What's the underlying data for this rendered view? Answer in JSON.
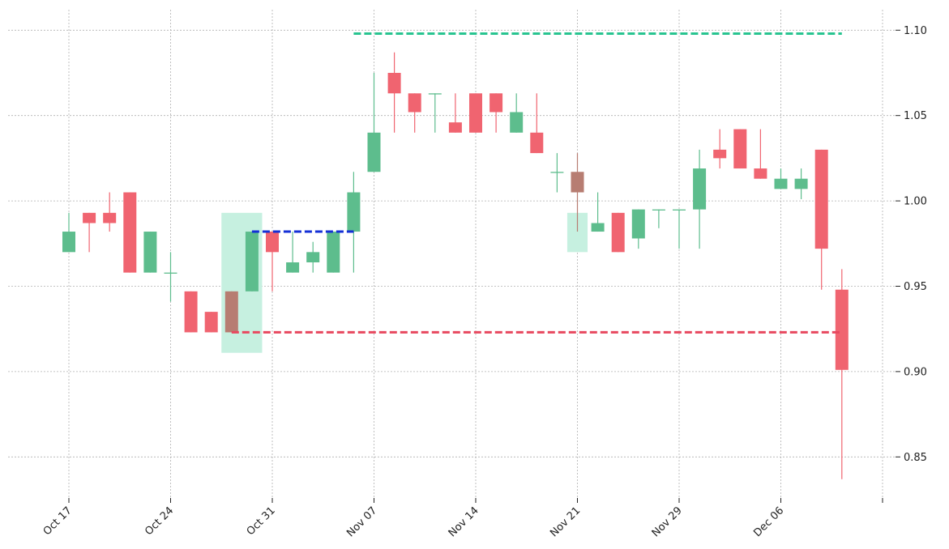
{
  "colors": {
    "up": "#5dbd8d",
    "down": "#f06470",
    "highlight": "#c6f0e0",
    "overlap": "#b77d72",
    "line_resistance": "#28c490",
    "line_support": "#e8485f",
    "line_neckline": "#1430d6"
  },
  "chart_data": {
    "type": "candlestick",
    "title": "",
    "xlabel": "",
    "ylabel": "",
    "ylim": [
      0.825,
      1.112
    ],
    "yticks": [
      0.85,
      0.9,
      0.95,
      1.0,
      1.05,
      1.1
    ],
    "ytick_labels": [
      "0.85",
      "0.90",
      "0.95",
      "1.00",
      "1.05",
      "1.10"
    ],
    "xticks": [
      {
        "index": 0,
        "label": "Oct 17"
      },
      {
        "index": 5,
        "label": "Oct 24"
      },
      {
        "index": 10,
        "label": "Oct 31"
      },
      {
        "index": 15,
        "label": "Nov 07"
      },
      {
        "index": 20,
        "label": "Nov 14"
      },
      {
        "index": 25,
        "label": "Nov 21"
      },
      {
        "index": 30,
        "label": "Nov 29"
      },
      {
        "index": 35,
        "label": "Dec 06"
      },
      {
        "index": 40,
        "label": ""
      }
    ],
    "x_range": [
      -1.0,
      41.0
    ],
    "grid": true,
    "candles": [
      {
        "o": 0.97,
        "h": 0.993,
        "l": 0.97,
        "c": 0.982
      },
      {
        "o": 0.993,
        "h": 0.993,
        "l": 0.97,
        "c": 0.987
      },
      {
        "o": 0.993,
        "h": 1.005,
        "l": 0.982,
        "c": 0.987
      },
      {
        "o": 1.005,
        "h": 1.005,
        "l": 0.958,
        "c": 0.958
      },
      {
        "o": 0.958,
        "h": 0.982,
        "l": 0.958,
        "c": 0.982
      },
      {
        "o": 0.958,
        "h": 0.97,
        "l": 0.941,
        "c": 0.958
      },
      {
        "o": 0.947,
        "h": 0.947,
        "l": 0.923,
        "c": 0.923
      },
      {
        "o": 0.935,
        "h": 0.935,
        "l": 0.923,
        "c": 0.923
      },
      {
        "o": 0.947,
        "h": 0.947,
        "l": 0.923,
        "c": 0.923
      },
      {
        "o": 0.947,
        "h": 0.982,
        "l": 0.947,
        "c": 0.982
      },
      {
        "o": 0.982,
        "h": 0.982,
        "l": 0.947,
        "c": 0.97
      },
      {
        "o": 0.958,
        "h": 0.982,
        "l": 0.958,
        "c": 0.964
      },
      {
        "o": 0.964,
        "h": 0.976,
        "l": 0.958,
        "c": 0.97
      },
      {
        "o": 0.958,
        "h": 0.982,
        "l": 0.958,
        "c": 0.982
      },
      {
        "o": 0.982,
        "h": 1.017,
        "l": 0.958,
        "c": 1.005
      },
      {
        "o": 1.017,
        "h": 1.075,
        "l": 1.017,
        "c": 1.04
      },
      {
        "o": 1.075,
        "h": 1.087,
        "l": 1.04,
        "c": 1.063
      },
      {
        "o": 1.063,
        "h": 1.063,
        "l": 1.04,
        "c": 1.052
      },
      {
        "o": 1.063,
        "h": 1.063,
        "l": 1.04,
        "c": 1.063
      },
      {
        "o": 1.046,
        "h": 1.063,
        "l": 1.04,
        "c": 1.04
      },
      {
        "o": 1.063,
        "h": 1.063,
        "l": 1.04,
        "c": 1.04
      },
      {
        "o": 1.063,
        "h": 1.063,
        "l": 1.04,
        "c": 1.052
      },
      {
        "o": 1.04,
        "h": 1.063,
        "l": 1.04,
        "c": 1.052
      },
      {
        "o": 1.04,
        "h": 1.063,
        "l": 1.028,
        "c": 1.028
      },
      {
        "o": 1.017,
        "h": 1.028,
        "l": 1.005,
        "c": 1.017
      },
      {
        "o": 1.017,
        "h": 1.028,
        "l": 0.982,
        "c": 1.005
      },
      {
        "o": 0.982,
        "h": 1.005,
        "l": 0.982,
        "c": 0.987
      },
      {
        "o": 0.993,
        "h": 0.993,
        "l": 0.97,
        "c": 0.97
      },
      {
        "o": 0.978,
        "h": 0.995,
        "l": 0.972,
        "c": 0.995
      },
      {
        "o": 0.995,
        "h": 0.995,
        "l": 0.984,
        "c": 0.995
      },
      {
        "o": 0.995,
        "h": 0.995,
        "l": 0.972,
        "c": 0.995
      },
      {
        "o": 0.995,
        "h": 1.03,
        "l": 0.972,
        "c": 1.019
      },
      {
        "o": 1.03,
        "h": 1.042,
        "l": 1.019,
        "c": 1.025
      },
      {
        "o": 1.042,
        "h": 1.042,
        "l": 1.019,
        "c": 1.019
      },
      {
        "o": 1.019,
        "h": 1.042,
        "l": 1.013,
        "c": 1.013
      },
      {
        "o": 1.007,
        "h": 1.019,
        "l": 1.007,
        "c": 1.013
      },
      {
        "o": 1.007,
        "h": 1.019,
        "l": 1.001,
        "c": 1.013
      },
      {
        "o": 1.03,
        "h": 1.03,
        "l": 0.948,
        "c": 0.972
      },
      {
        "o": 0.948,
        "h": 0.96,
        "l": 0.837,
        "c": 0.901
      }
    ],
    "highlight_zones": [
      {
        "x_from": 7.5,
        "x_to": 9.5,
        "y_from": 0.911,
        "y_to": 0.993
      },
      {
        "x_from": 24.5,
        "x_to": 25.5,
        "y_from": 0.97,
        "y_to": 0.993
      }
    ],
    "hlines": [
      {
        "y": 1.098,
        "x_from": 14.0,
        "x_to": 38.0,
        "role": "line_resistance"
      },
      {
        "y": 0.923,
        "x_from": 8.0,
        "x_to": 38.0,
        "role": "line_support"
      },
      {
        "y": 0.982,
        "x_from": 9.0,
        "x_to": 14.0,
        "role": "line_neckline"
      }
    ]
  }
}
